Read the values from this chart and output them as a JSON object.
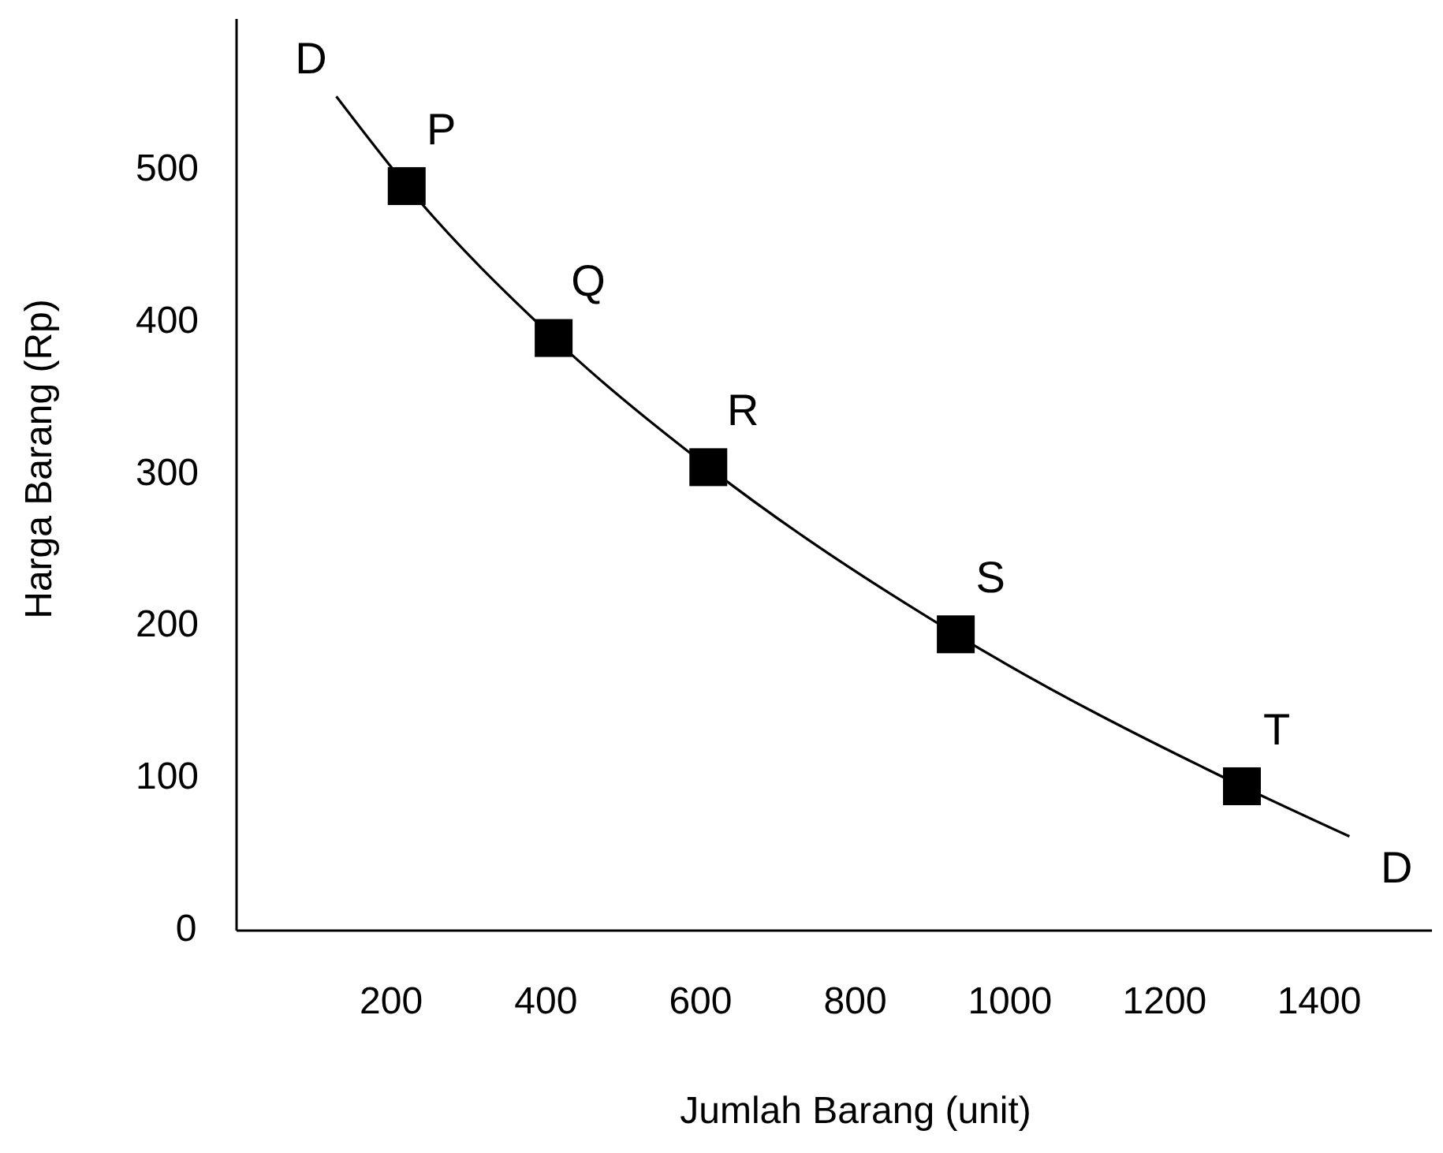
{
  "chart_data": {
    "type": "scatter",
    "xlabel": "Jumlah Barang (unit)",
    "ylabel": "Harga Barang (Rp)",
    "xlim": [
      0,
      1560
    ],
    "ylim": [
      0,
      600
    ],
    "xticks": [
      200,
      400,
      600,
      800,
      1000,
      1200,
      1400
    ],
    "yticks": [
      0,
      100,
      200,
      300,
      400,
      500
    ],
    "grid": false,
    "series": [
      {
        "type": "line",
        "color": "#000000",
        "marker": "none",
        "line_style": "solid",
        "x": [
          129,
          220,
          410,
          610,
          930,
          1300,
          1439
        ],
        "values": [
          549,
          490,
          390,
          305,
          195,
          95,
          62
        ]
      },
      {
        "color": "#000000",
        "marker": "square",
        "x": [
          220,
          410,
          610,
          930,
          1300
        ],
        "values": [
          490,
          390,
          305,
          195,
          95
        ]
      }
    ],
    "annotations": [
      {
        "text": "D",
        "x": 129,
        "y": 549
      },
      {
        "text": "P",
        "x": 220,
        "y": 490
      },
      {
        "text": "Q",
        "x": 410,
        "y": 390
      },
      {
        "text": "R",
        "x": 610,
        "y": 305
      },
      {
        "text": "S",
        "x": 930,
        "y": 195
      },
      {
        "text": "T",
        "x": 1300,
        "y": 95
      },
      {
        "text": "D",
        "x": 1439,
        "y": 62
      }
    ]
  }
}
